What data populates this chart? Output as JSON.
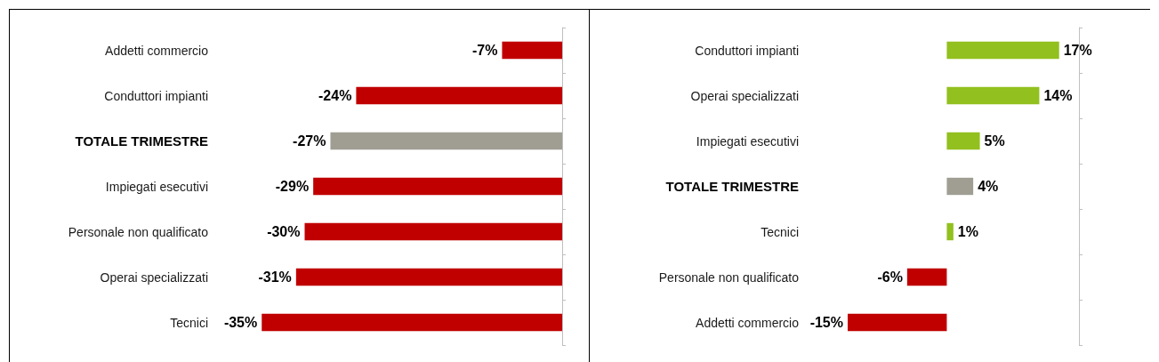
{
  "chart_data": [
    {
      "type": "bar",
      "orientation": "horizontal",
      "categories": [
        "Addetti commercio",
        "Conduttori impianti",
        "TOTALE TRIMESTRE",
        "Impiegati esecutivi",
        "Personale non qualificato",
        "Operai specializzati",
        "Tecnici"
      ],
      "values": [
        -7,
        -24,
        -27,
        -29,
        -30,
        -31,
        -35
      ],
      "value_labels": [
        "-7%",
        "-24%",
        "-27%",
        "-29%",
        "-30%",
        "-31%",
        "-35%"
      ],
      "colors": [
        "#c00000",
        "#c00000",
        "#a09e93",
        "#c00000",
        "#c00000",
        "#c00000",
        "#c00000"
      ],
      "grid": false
    },
    {
      "type": "bar",
      "orientation": "horizontal",
      "categories": [
        "Conduttori impianti",
        "Operai specializzati",
        "Impiegati esecutivi",
        "TOTALE TRIMESTRE",
        "Tecnici",
        "Personale non qualificato",
        "Addetti commercio"
      ],
      "values": [
        17,
        14,
        5,
        4,
        1,
        -6,
        -15
      ],
      "value_labels": [
        "17%",
        "14%",
        "5%",
        "4%",
        "1%",
        "-6%",
        "-15%"
      ],
      "colors": [
        "#92c01f",
        "#92c01f",
        "#92c01f",
        "#a09e93",
        "#92c01f",
        "#c00000",
        "#c00000"
      ],
      "grid": false
    }
  ]
}
